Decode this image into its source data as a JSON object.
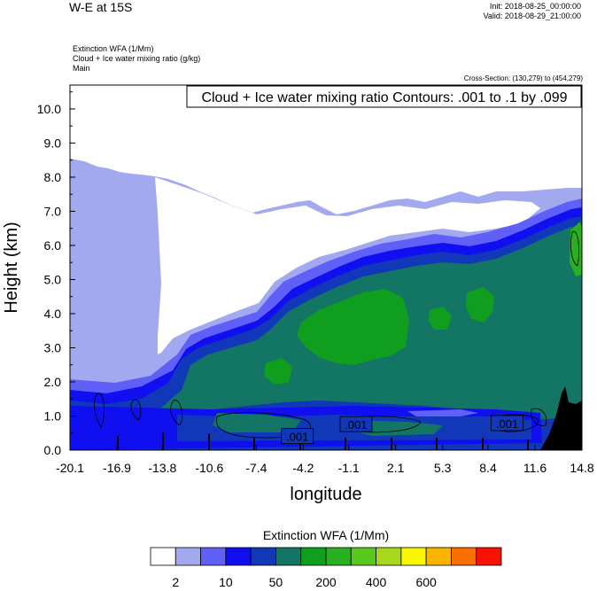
{
  "header": {
    "title": "W-E at 15S",
    "init": "Init: 2018-08-25_00:00:00",
    "valid": "Valid: 2018-08-29_21:00:00",
    "subtitle_lines": [
      "Extinction WFA   (1/Mm)",
      "Cloud + Ice water mixing ratio   (g/kg)",
      "Main"
    ],
    "cross_section": "Cross-Section: (130,279) to (454,279)"
  },
  "chart_data": {
    "type": "heatmap",
    "title": "Cloud + Ice water mixing ratio Contours: .001 to .1 by .099",
    "xlabel": "longitude",
    "ylabel": "Height (km)",
    "xlim": [
      -20.1,
      14.8
    ],
    "ylim": [
      0,
      10.7
    ],
    "x_ticks": [
      "-20.1",
      "-16.9",
      "-13.8",
      "-10.6",
      "-7.4",
      "-4.2",
      "-1.1",
      "2.1",
      "5.3",
      "8.4",
      "11.6",
      "14.8"
    ],
    "y_ticks": [
      "0.0",
      "1.0",
      "2.0",
      "3.0",
      "4.0",
      "5.0",
      "6.0",
      "7.0",
      "8.0",
      "9.0",
      "10.0"
    ],
    "contour_labels": [
      {
        "text": ".001",
        "x": -4.6,
        "y": 0.4
      },
      {
        "text": ".001",
        "x": -0.6,
        "y": 0.75
      },
      {
        "text": ".001",
        "x": 9.7,
        "y": 0.78
      }
    ],
    "colorbar": {
      "title": "Extinction WFA  (1/Mm)",
      "colors": [
        "#ffffff",
        "#a3a9ef",
        "#6060f8",
        "#0f0fef",
        "#1038b8",
        "#137563",
        "#109e1e",
        "#28b020",
        "#58c81e",
        "#a8d81c",
        "#f8f600",
        "#f8b400",
        "#f86e00",
        "#f81000"
      ],
      "labels": [
        "2",
        "10",
        "50",
        "200",
        "400",
        "600"
      ]
    }
  }
}
